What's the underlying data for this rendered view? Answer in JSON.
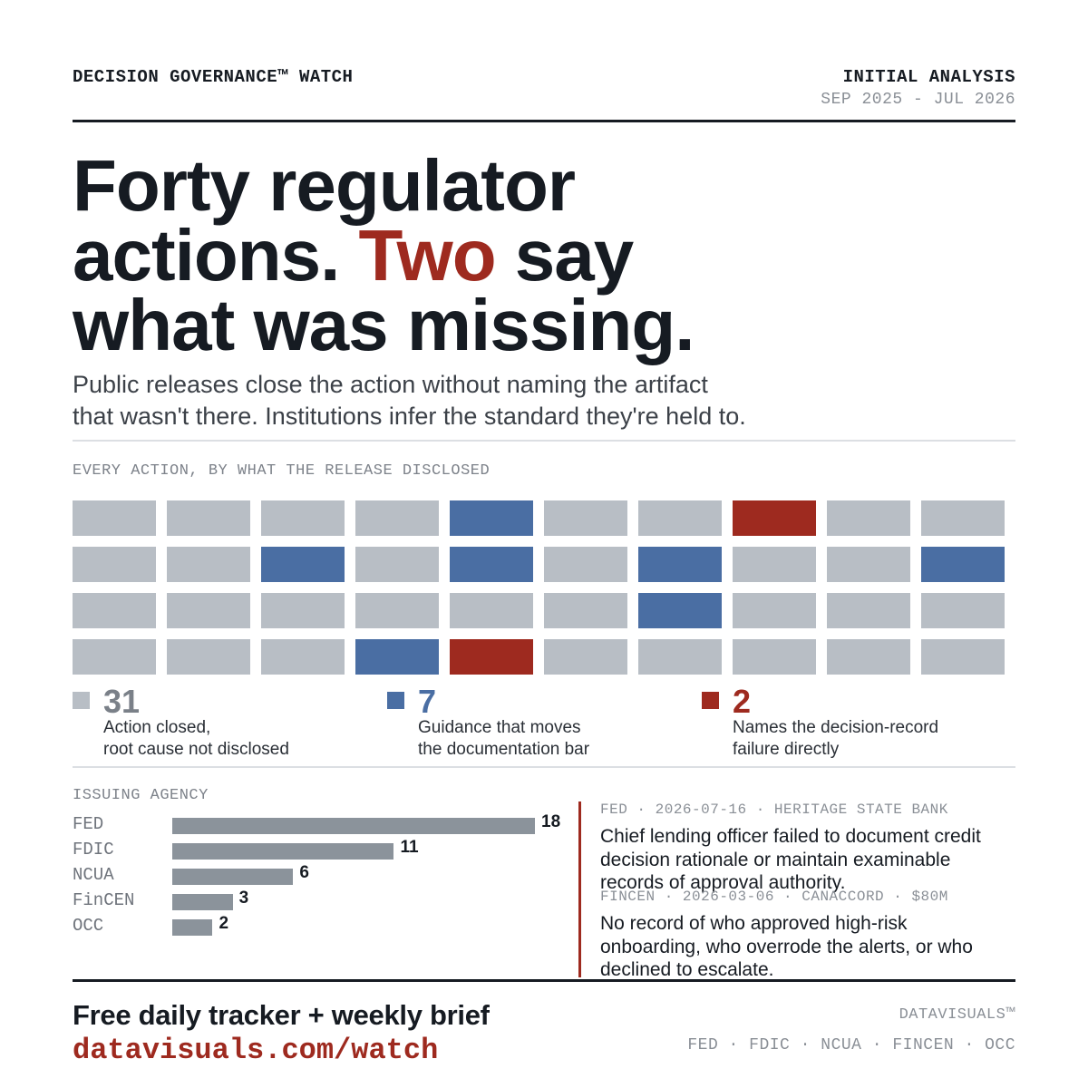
{
  "header": {
    "brand": "DECISION GOVERNANCE™ WATCH",
    "edition": "INITIAL ANALYSIS",
    "date_range": "SEP 2025 - JUL 2026"
  },
  "headline": {
    "line1": "Forty regulator",
    "line2_pre": "actions. ",
    "line2_accent": "Two",
    "line2_post": " say",
    "line3": "what was missing."
  },
  "subheadline": {
    "line1": "Public releases close the action without naming the artifact",
    "line2": "that wasn't there. Institutions infer the standard they're held to."
  },
  "colors": {
    "undisclosed": "#b8bec5",
    "guidance": "#4a6ea3",
    "named": "#9e2a1f",
    "agency_bar": "#8b939b"
  },
  "chart_data": [
    {
      "type": "heatmap",
      "title": "EVERY ACTION, BY WHAT THE RELEASE DISCLOSED",
      "rows": 4,
      "columns": 10,
      "cells": [
        [
          "undisclosed",
          "undisclosed",
          "undisclosed",
          "undisclosed",
          "guidance",
          "undisclosed",
          "undisclosed",
          "named",
          "undisclosed",
          "undisclosed"
        ],
        [
          "undisclosed",
          "undisclosed",
          "guidance",
          "undisclosed",
          "guidance",
          "undisclosed",
          "guidance",
          "undisclosed",
          "undisclosed",
          "guidance"
        ],
        [
          "undisclosed",
          "undisclosed",
          "undisclosed",
          "undisclosed",
          "undisclosed",
          "undisclosed",
          "guidance",
          "undisclosed",
          "undisclosed",
          "undisclosed"
        ],
        [
          "undisclosed",
          "undisclosed",
          "undisclosed",
          "guidance",
          "named",
          "undisclosed",
          "undisclosed",
          "undisclosed",
          "undisclosed",
          "undisclosed"
        ]
      ],
      "legend": [
        {
          "key": "undisclosed",
          "count": "31",
          "line1": "Action closed,",
          "line2": "root cause not disclosed"
        },
        {
          "key": "guidance",
          "count": "7",
          "line1": "Guidance that moves",
          "line2": "the documentation bar"
        },
        {
          "key": "named",
          "count": "2",
          "line1": "Names the decision-record",
          "line2": "failure directly"
        }
      ]
    },
    {
      "type": "bar",
      "title": "ISSUING AGENCY",
      "orientation": "horizontal",
      "categories": [
        "FED",
        "FDIC",
        "NCUA",
        "FinCEN",
        "OCC"
      ],
      "values": [
        18,
        11,
        6,
        3,
        2
      ],
      "xlim": [
        0,
        18
      ]
    }
  ],
  "quotes": [
    {
      "meta": "FED · 2026-07-16 · HERITAGE STATE BANK",
      "text": "Chief lending officer failed to document credit decision rationale or maintain examinable records of approval authority."
    },
    {
      "meta": "FINCEN · 2026-03-06 · CANACCORD · $80M",
      "text": "No record of who approved high-risk onboarding, who overrode the alerts, or who declined to escalate."
    }
  ],
  "footer": {
    "cta": "Free daily tracker + weekly brief",
    "url": "datavisuals.com/watch",
    "brand": "DATAVISUALS™",
    "agencies": "FED · FDIC · NCUA · FINCEN · OCC"
  }
}
